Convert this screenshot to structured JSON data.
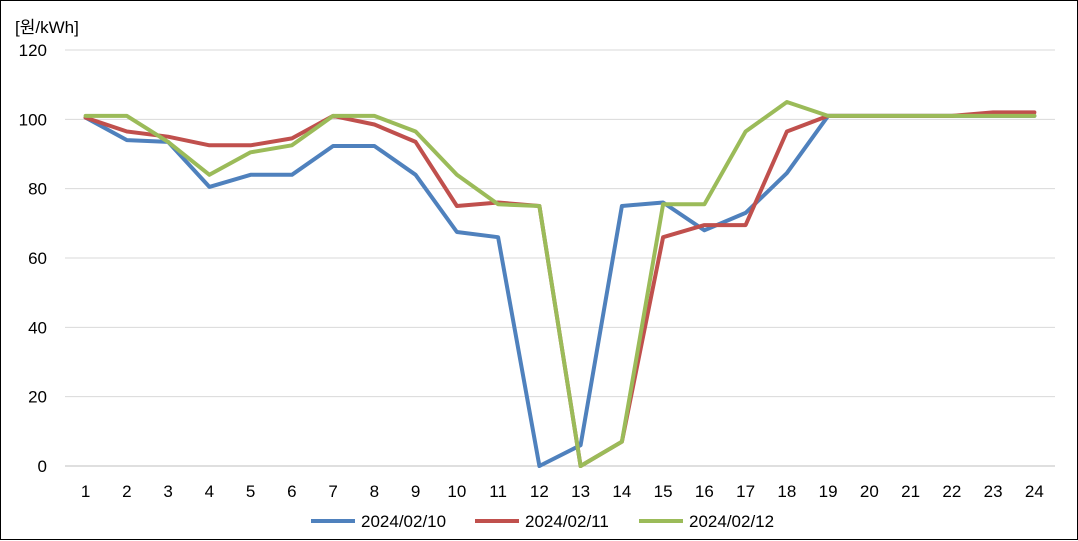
{
  "chart_data": {
    "type": "line",
    "ylabel": "[원/kWh]",
    "ylim": [
      0,
      120
    ],
    "yticks": [
      0,
      20,
      40,
      60,
      80,
      100,
      120
    ],
    "grid": true,
    "legend_position": "bottom",
    "x": [
      1,
      2,
      3,
      4,
      5,
      6,
      7,
      8,
      9,
      10,
      11,
      12,
      13,
      14,
      15,
      16,
      17,
      18,
      19,
      20,
      21,
      22,
      23,
      24
    ],
    "series": [
      {
        "name": "2024/02/10",
        "color": "#4F81BD",
        "values": [
          100.5,
          94,
          93.5,
          80.5,
          84,
          84,
          92.3,
          92.3,
          84,
          67.5,
          66,
          0,
          6,
          75,
          76,
          68,
          73,
          84.5,
          101,
          101,
          101,
          101,
          101,
          101
        ]
      },
      {
        "name": "2024/02/11",
        "color": "#C0504D",
        "values": [
          100.5,
          96.5,
          95,
          92.5,
          92.5,
          94.5,
          101,
          98.5,
          93.5,
          75,
          76,
          75,
          0,
          7,
          66,
          69.5,
          69.5,
          96.5,
          101,
          101,
          101,
          101,
          102,
          102
        ]
      },
      {
        "name": "2024/02/12",
        "color": "#9BBB59",
        "values": [
          101,
          101,
          93.5,
          84,
          90.5,
          92.5,
          101,
          101,
          96.5,
          84,
          75.5,
          75,
          0,
          7,
          75.5,
          75.5,
          96.5,
          105,
          101,
          101,
          101,
          101,
          101,
          101
        ]
      }
    ]
  }
}
